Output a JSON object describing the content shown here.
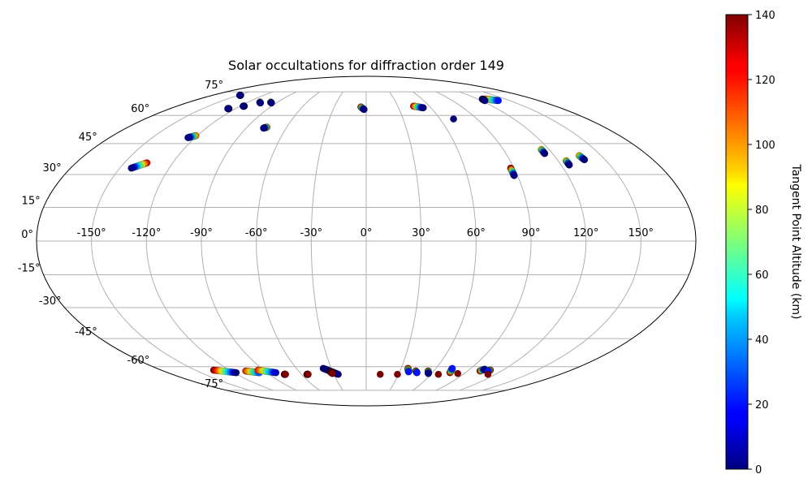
{
  "chart_data": {
    "type": "scatter",
    "projection": "mollweide",
    "title": "Solar occultations for diffraction order 149",
    "longitude_ticks": [
      -150,
      -120,
      -90,
      -60,
      -30,
      0,
      30,
      60,
      90,
      120,
      150
    ],
    "longitude_tick_labels": [
      "-150°",
      "-120°",
      "-90°",
      "-60°",
      "-30°",
      "0°",
      "30°",
      "60°",
      "90°",
      "120°",
      "150°"
    ],
    "latitude_ticks": [
      75,
      60,
      45,
      30,
      15,
      0,
      -15,
      -30,
      -45,
      -60,
      -75
    ],
    "latitude_tick_labels": [
      "75°",
      "60°",
      "45°",
      "30°",
      "15°",
      "0°",
      "-15°",
      "-30°",
      "-45°",
      "-60°",
      "-75°"
    ],
    "grid": true,
    "colorbar": {
      "label": "Tangent Point Altitude (km)",
      "colormap": "jet",
      "range": [
        0,
        140
      ],
      "ticks": [
        0,
        20,
        40,
        60,
        80,
        100,
        120,
        140
      ],
      "tick_labels": [
        "0",
        "20",
        "40",
        "60",
        "80",
        "100",
        "120",
        "140"
      ]
    },
    "series": [
      {
        "points": [
          {
            "lon": -143,
            "lat": 33,
            "alt": 0
          },
          {
            "lon": -136,
            "lat": 35.5,
            "alt": 130
          }
        ]
      },
      {
        "points": [
          {
            "lon": -125,
            "lat": 48,
            "alt": 0
          },
          {
            "lon": -121,
            "lat": 49,
            "alt": 110
          }
        ]
      },
      {
        "points": [
          {
            "lon": -127,
            "lat": 64,
            "alt": 0
          },
          {
            "lon": -126,
            "lat": 64,
            "alt": 10
          }
        ]
      },
      {
        "points": [
          {
            "lon": -148,
            "lat": 72.5,
            "alt": 0
          },
          {
            "lon": -147,
            "lat": 72.5,
            "alt": 10
          }
        ]
      },
      {
        "points": [
          {
            "lon": -117,
            "lat": 65.5,
            "alt": 0
          },
          {
            "lon": -116,
            "lat": 65.5,
            "alt": 10
          }
        ]
      },
      {
        "points": [
          {
            "lon": -108,
            "lat": 68,
            "alt": 100
          },
          {
            "lon": -106,
            "lat": 67.5,
            "alt": 0
          }
        ]
      },
      {
        "points": [
          {
            "lon": -97,
            "lat": 68,
            "alt": 110
          },
          {
            "lon": -95,
            "lat": 67.5,
            "alt": 0
          }
        ]
      },
      {
        "points": [
          {
            "lon": -77,
            "lat": 53,
            "alt": 0
          },
          {
            "lon": -75,
            "lat": 53.5,
            "alt": 110
          }
        ]
      },
      {
        "points": [
          {
            "lon": -5,
            "lat": 65,
            "alt": 130
          },
          {
            "lon": -2,
            "lat": 63.5,
            "alt": 0
          }
        ]
      },
      {
        "points": [
          {
            "lon": 45,
            "lat": 65.5,
            "alt": 130
          },
          {
            "lon": 53,
            "lat": 64.5,
            "alt": 0
          }
        ]
      },
      {
        "points": [
          {
            "lon": 71,
            "lat": 58,
            "alt": 0
          }
        ]
      },
      {
        "points": [
          {
            "lon": 128,
            "lat": 70,
            "alt": 120
          },
          {
            "lon": 138,
            "lat": 69,
            "alt": 20
          }
        ]
      },
      {
        "points": [
          {
            "lon": 124,
            "lat": 69,
            "alt": 0
          },
          {
            "lon": 125,
            "lat": 70,
            "alt": 10
          }
        ]
      },
      {
        "points": [
          {
            "lon": 115,
            "lat": 42,
            "alt": 100
          },
          {
            "lon": 115,
            "lat": 40,
            "alt": 0
          }
        ]
      },
      {
        "points": [
          {
            "lon": 88,
            "lat": 33,
            "alt": 140
          },
          {
            "lon": 88,
            "lat": 29.5,
            "alt": 0
          }
        ]
      },
      {
        "points": [
          {
            "lon": 125,
            "lat": 36.5,
            "alt": 100
          },
          {
            "lon": 125,
            "lat": 34.5,
            "alt": 0
          }
        ]
      },
      {
        "points": [
          {
            "lon": 136,
            "lat": 39,
            "alt": 100
          },
          {
            "lon": 137,
            "lat": 37,
            "alt": 0
          }
        ]
      },
      {
        "points": [
          {
            "lon": -134,
            "lat": -62,
            "alt": 140
          },
          {
            "lon": -118,
            "lat": -63.5,
            "alt": 0
          }
        ]
      },
      {
        "points": [
          {
            "lon": -107,
            "lat": -62.5,
            "alt": 120
          },
          {
            "lon": -97,
            "lat": -63.5,
            "alt": 30
          }
        ]
      },
      {
        "points": [
          {
            "lon": -95,
            "lat": -62,
            "alt": 120
          },
          {
            "lon": -82,
            "lat": -63.5,
            "alt": 10
          }
        ]
      },
      {
        "points": [
          {
            "lon": -76,
            "lat": -64.5,
            "alt": 140
          },
          {
            "lon": -75,
            "lat": -64.5,
            "alt": 140
          }
        ]
      },
      {
        "points": [
          {
            "lon": -55,
            "lat": -64.5,
            "alt": 140
          },
          {
            "lon": -54,
            "lat": -64.5,
            "alt": 140
          }
        ]
      },
      {
        "points": [
          {
            "lon": -37,
            "lat": -61,
            "alt": 0
          },
          {
            "lon": -26,
            "lat": -64.5,
            "alt": 0
          }
        ]
      },
      {
        "points": [
          {
            "lon": -32,
            "lat": -63,
            "alt": 140
          },
          {
            "lon": -31,
            "lat": -64,
            "alt": 140
          }
        ]
      },
      {
        "points": [
          {
            "lon": 13,
            "lat": -64.5,
            "alt": 140
          }
        ]
      },
      {
        "points": [
          {
            "lon": 29,
            "lat": -64.5,
            "alt": 140
          }
        ]
      },
      {
        "points": [
          {
            "lon": 36,
            "lat": -61,
            "alt": 140
          },
          {
            "lon": 38,
            "lat": -63,
            "alt": 20
          }
        ]
      },
      {
        "points": [
          {
            "lon": 44,
            "lat": -62.5,
            "alt": 140
          },
          {
            "lon": 46,
            "lat": -63.5,
            "alt": 20
          }
        ]
      },
      {
        "points": [
          {
            "lon": 55,
            "lat": -62.5,
            "alt": 140
          },
          {
            "lon": 57,
            "lat": -64,
            "alt": 0
          }
        ]
      },
      {
        "points": [
          {
            "lon": 67,
            "lat": -64.5,
            "alt": 140
          }
        ]
      },
      {
        "points": [
          {
            "lon": 74,
            "lat": -61,
            "alt": 20
          },
          {
            "lon": 76,
            "lat": -63.5,
            "alt": 140
          }
        ]
      },
      {
        "points": [
          {
            "lon": 84,
            "lat": -64,
            "alt": 140
          }
        ]
      },
      {
        "points": [
          {
            "lon": 103,
            "lat": -61.5,
            "alt": 0
          },
          {
            "lon": 101,
            "lat": -62.5,
            "alt": 140
          }
        ]
      },
      {
        "points": [
          {
            "lon": 109,
            "lat": -62,
            "alt": 140
          },
          {
            "lon": 108,
            "lat": -62.5,
            "alt": 20
          }
        ]
      },
      {
        "points": [
          {
            "lon": 113,
            "lat": -64.5,
            "alt": 140
          }
        ]
      }
    ]
  }
}
